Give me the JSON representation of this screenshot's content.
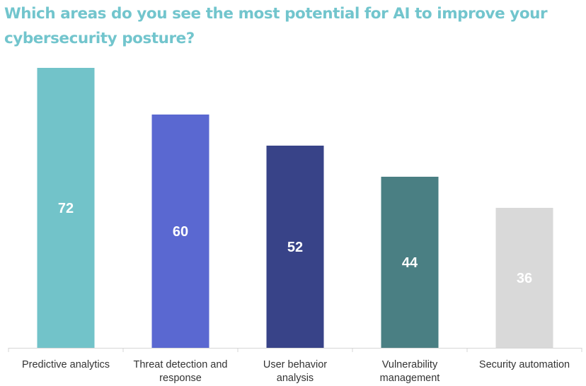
{
  "chart_data": {
    "type": "bar",
    "title": "Which areas do you see the most potential for AI to improve your cybersecurity posture?",
    "categories": [
      [
        "Predictive analytics"
      ],
      [
        "Threat detection and",
        "response"
      ],
      [
        "User behavior",
        "analysis"
      ],
      [
        "Vulnerability",
        "management"
      ],
      [
        "Security automation"
      ]
    ],
    "values": [
      72,
      60,
      52,
      44,
      36
    ],
    "colors": [
      "#72c3c9",
      "#5a68d1",
      "#384388",
      "#4a7f83",
      "#d9d9d9"
    ],
    "value_label_color": "#ffffff",
    "title_color": "#72c5cd",
    "xlabel": "",
    "ylabel": "",
    "ylim": [
      0,
      72
    ],
    "grid": false,
    "legend": "none"
  }
}
